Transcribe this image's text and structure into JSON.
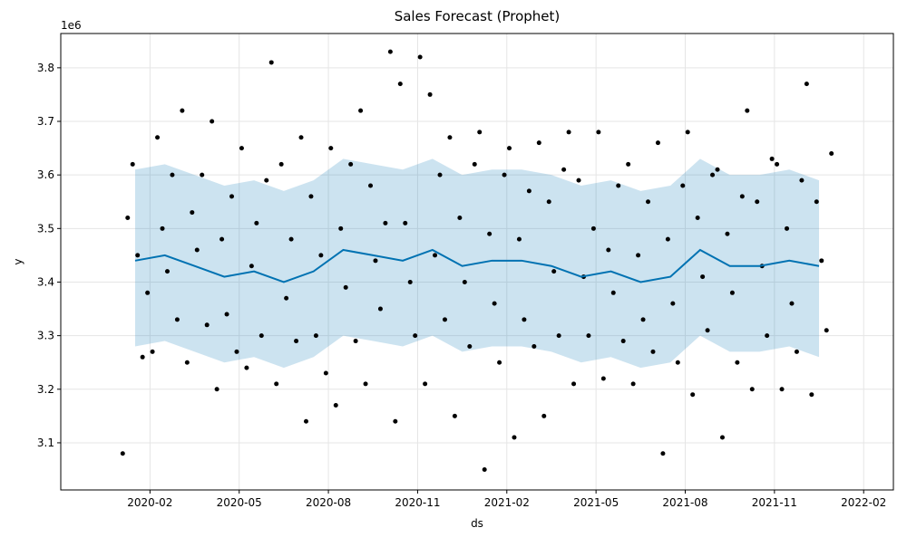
{
  "chart_data": {
    "type": "forecast",
    "title": "Sales Forecast (Prophet)",
    "x_label": "ds",
    "y_label": "y",
    "y_offset_label": "1e6",
    "xlim": [
      "2019-11",
      "2022-03"
    ],
    "xticks": [
      "2020-02",
      "2020-05",
      "2020-08",
      "2020-11",
      "2021-02",
      "2021-05",
      "2021-08",
      "2021-11",
      "2022-02"
    ],
    "ylim": [
      3012000,
      3864000
    ],
    "yticks": [
      {
        "value": 3100000,
        "label": "3.1"
      },
      {
        "value": 3200000,
        "label": "3.2"
      },
      {
        "value": 3300000,
        "label": "3.3"
      },
      {
        "value": 3400000,
        "label": "3.4"
      },
      {
        "value": 3500000,
        "label": "3.5"
      },
      {
        "value": 3600000,
        "label": "3.6"
      },
      {
        "value": 3700000,
        "label": "3.7"
      },
      {
        "value": 3800000,
        "label": "3.8"
      }
    ],
    "grid": true,
    "line_color": "#0072B2",
    "band_color": "#0072B2",
    "point_color": "#000000",
    "forecast": {
      "x": [
        "2020-01",
        "2020-02",
        "2020-03",
        "2020-04",
        "2020-05",
        "2020-06",
        "2020-07",
        "2020-08",
        "2020-09",
        "2020-10",
        "2020-11",
        "2020-12",
        "2021-01",
        "2021-02",
        "2021-03",
        "2021-04",
        "2021-05",
        "2021-06",
        "2021-07",
        "2021-08",
        "2021-09",
        "2021-10",
        "2021-11",
        "2021-12"
      ],
      "yhat": [
        3440000,
        3450000,
        3430000,
        3410000,
        3420000,
        3400000,
        3420000,
        3460000,
        3450000,
        3440000,
        3460000,
        3430000,
        3440000,
        3440000,
        3430000,
        3410000,
        3420000,
        3400000,
        3410000,
        3460000,
        3430000,
        3430000,
        3440000,
        3430000
      ],
      "yhat_upper": [
        3610000,
        3620000,
        3600000,
        3580000,
        3590000,
        3570000,
        3590000,
        3630000,
        3620000,
        3610000,
        3630000,
        3600000,
        3610000,
        3610000,
        3600000,
        3580000,
        3590000,
        3570000,
        3580000,
        3630000,
        3600000,
        3600000,
        3610000,
        3590000
      ],
      "yhat_lower": [
        3280000,
        3290000,
        3270000,
        3250000,
        3260000,
        3240000,
        3260000,
        3300000,
        3290000,
        3280000,
        3300000,
        3270000,
        3280000,
        3280000,
        3270000,
        3250000,
        3260000,
        3240000,
        3250000,
        3300000,
        3270000,
        3270000,
        3280000,
        3260000
      ]
    },
    "observed": [
      {
        "x": "2020-01",
        "values": [
          3080000,
          3520000,
          3620000,
          3450000,
          3260000,
          3380000
        ]
      },
      {
        "x": "2020-02",
        "values": [
          3270000,
          3670000,
          3500000,
          3420000,
          3600000,
          3330000
        ]
      },
      {
        "x": "2020-03",
        "values": [
          3720000,
          3250000,
          3530000,
          3460000,
          3600000,
          3320000
        ]
      },
      {
        "x": "2020-04",
        "values": [
          3700000,
          3200000,
          3480000,
          3340000,
          3560000,
          3270000
        ]
      },
      {
        "x": "2020-05",
        "values": [
          3650000,
          3240000,
          3430000,
          3510000,
          3300000,
          3590000
        ]
      },
      {
        "x": "2020-06",
        "values": [
          3810000,
          3210000,
          3620000,
          3370000,
          3480000,
          3290000
        ]
      },
      {
        "x": "2020-07",
        "values": [
          3670000,
          3140000,
          3560000,
          3300000,
          3450000,
          3230000
        ]
      },
      {
        "x": "2020-08",
        "values": [
          3650000,
          3170000,
          3500000,
          3390000,
          3620000,
          3290000
        ]
      },
      {
        "x": "2020-09",
        "values": [
          3720000,
          3210000,
          3580000,
          3440000,
          3350000,
          3510000
        ]
      },
      {
        "x": "2020-10",
        "values": [
          3830000,
          3140000,
          3770000,
          3510000,
          3400000,
          3300000
        ]
      },
      {
        "x": "2020-11",
        "values": [
          3820000,
          3210000,
          3750000,
          3450000,
          3600000,
          3330000
        ]
      },
      {
        "x": "2020-12",
        "values": [
          3670000,
          3150000,
          3520000,
          3400000,
          3280000,
          3620000
        ]
      },
      {
        "x": "2021-01",
        "values": [
          3680000,
          3050000,
          3490000,
          3360000,
          3250000,
          3600000
        ]
      },
      {
        "x": "2021-02",
        "values": [
          3650000,
          3110000,
          3480000,
          3330000,
          3570000,
          3280000
        ]
      },
      {
        "x": "2021-03",
        "values": [
          3660000,
          3150000,
          3550000,
          3420000,
          3300000,
          3610000
        ]
      },
      {
        "x": "2021-04",
        "values": [
          3680000,
          3210000,
          3590000,
          3410000,
          3300000,
          3500000
        ]
      },
      {
        "x": "2021-05",
        "values": [
          3680000,
          3220000,
          3460000,
          3380000,
          3580000,
          3290000
        ]
      },
      {
        "x": "2021-06",
        "values": [
          3620000,
          3210000,
          3450000,
          3330000,
          3550000,
          3270000
        ]
      },
      {
        "x": "2021-07",
        "values": [
          3660000,
          3080000,
          3480000,
          3360000,
          3250000,
          3580000
        ]
      },
      {
        "x": "2021-08",
        "values": [
          3680000,
          3190000,
          3520000,
          3410000,
          3310000,
          3600000
        ]
      },
      {
        "x": "2021-09",
        "values": [
          3610000,
          3110000,
          3490000,
          3380000,
          3250000,
          3560000
        ]
      },
      {
        "x": "2021-10",
        "values": [
          3720000,
          3200000,
          3550000,
          3430000,
          3300000,
          3630000
        ]
      },
      {
        "x": "2021-11",
        "values": [
          3620000,
          3200000,
          3500000,
          3360000,
          3270000,
          3590000
        ]
      },
      {
        "x": "2021-12",
        "values": [
          3770000,
          3190000,
          3550000,
          3440000,
          3310000,
          3640000
        ]
      }
    ]
  }
}
